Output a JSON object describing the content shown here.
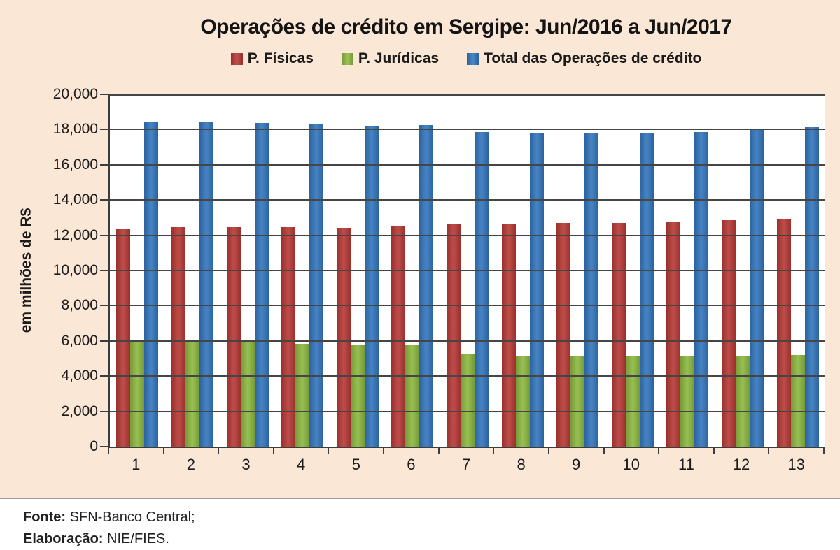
{
  "title": "Operações de crédito em Sergipe: Jun/2016 a Jun/2017",
  "colors": {
    "background": "#fbe7d6",
    "plot_background": "#ffffff",
    "grid": "#454545",
    "axis": "#3c3c3c",
    "red_series": "#b73936",
    "green_series": "#8db840",
    "blue_series": "#3376bd"
  },
  "legend": {
    "items": [
      {
        "label": "P. Físicas",
        "color": "#b73936"
      },
      {
        "label": "P. Jurídicas",
        "color": "#8db840"
      },
      {
        "label": "Total das Operações de crédito",
        "color": "#3376bd"
      }
    ]
  },
  "footer": {
    "line1_label": "Fonte:",
    "line1_text": " SFN-Banco Central;",
    "line2_label": "Elaboração:",
    "line2_text": " NIE/FIES."
  },
  "chart_data": {
    "type": "bar",
    "title": "Operações de crédito em Sergipe: Jun/2016 a Jun/2017",
    "xlabel": "",
    "ylabel": "em milhões de R$",
    "categories": [
      "1",
      "2",
      "3",
      "4",
      "5",
      "6",
      "7",
      "8",
      "9",
      "10",
      "11",
      "12",
      "13"
    ],
    "series": [
      {
        "name": "P. Físicas",
        "color": "#b73936",
        "values": [
          12400,
          12450,
          12480,
          12480,
          12420,
          12500,
          12600,
          12650,
          12680,
          12700,
          12750,
          12850,
          12950
        ]
      },
      {
        "name": "P. Jurídicas",
        "color": "#8db840",
        "values": [
          6050,
          5950,
          5900,
          5850,
          5780,
          5760,
          5240,
          5130,
          5140,
          5120,
          5110,
          5150,
          5180
        ]
      },
      {
        "name": "Total das Operações de crédito",
        "color": "#3376bd",
        "values": [
          18450,
          18400,
          18380,
          18330,
          18200,
          18260,
          17840,
          17780,
          17820,
          17820,
          17860,
          18000,
          18130
        ]
      }
    ],
    "ylim": [
      0,
      20000
    ],
    "ytick_step": 2000,
    "ytick_labels": [
      "0",
      "2,000",
      "4,000",
      "6,000",
      "8,000",
      "10,000",
      "12,000",
      "14,000",
      "16,000",
      "18,000",
      "20,000"
    ],
    "grid": true,
    "gridlines_over_bars": true,
    "legend_position": "top"
  }
}
